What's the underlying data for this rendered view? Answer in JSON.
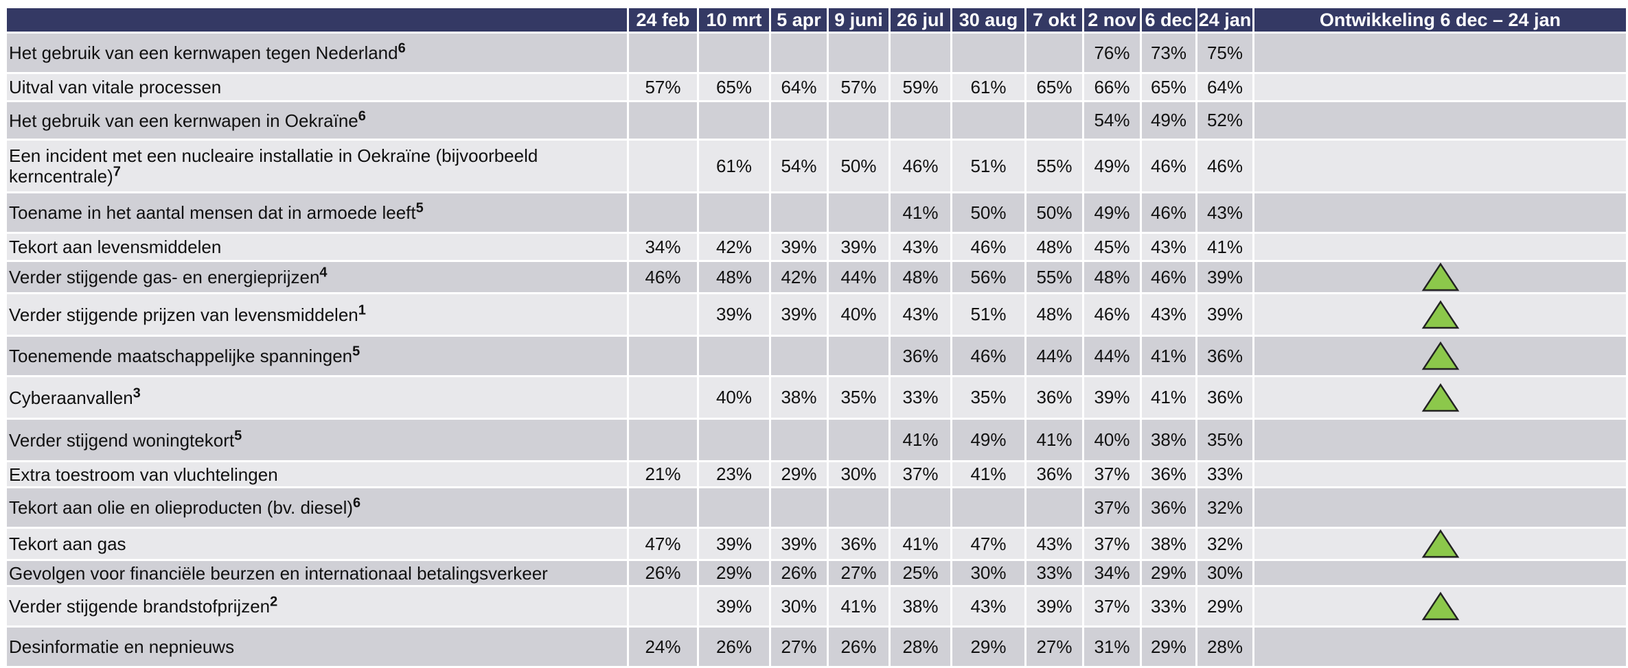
{
  "table": {
    "header": [
      "",
      "24 feb",
      "10 mrt",
      "5 apr",
      "9 juni",
      "26 jul",
      "30 aug",
      "7 okt",
      "2 nov",
      "6 dec",
      "24 jan",
      "Ontwikkeling 6 dec – 24 jan"
    ],
    "rows": [
      {
        "label": "Het gebruik van een kernwapen tegen Nederland",
        "note": "6",
        "values": [
          null,
          null,
          null,
          null,
          null,
          null,
          null,
          "76%",
          "73%",
          "75%"
        ],
        "trend": null
      },
      {
        "label": "Uitval van vitale processen",
        "note": null,
        "values": [
          "57%",
          "65%",
          "64%",
          "57%",
          "59%",
          "61%",
          "65%",
          "66%",
          "65%",
          "64%"
        ],
        "trend": null
      },
      {
        "label": "Het gebruik van een kernwapen in Oekraïne",
        "note": "6",
        "values": [
          null,
          null,
          null,
          null,
          null,
          null,
          null,
          "54%",
          "49%",
          "52%"
        ],
        "trend": null
      },
      {
        "label": "Een incident met een nucleaire installatie in Oekraïne (bijvoorbeeld kerncentrale)",
        "note": "7",
        "values": [
          null,
          "61%",
          "54%",
          "50%",
          "46%",
          "51%",
          "55%",
          "49%",
          "46%",
          "46%"
        ],
        "trend": null
      },
      {
        "label": "Toename in het aantal mensen dat in armoede leeft",
        "note": "5",
        "values": [
          null,
          null,
          null,
          null,
          "41%",
          "50%",
          "50%",
          "49%",
          "46%",
          "43%"
        ],
        "trend": null
      },
      {
        "label": "Tekort aan levensmiddelen",
        "note": null,
        "values": [
          "34%",
          "42%",
          "39%",
          "39%",
          "43%",
          "46%",
          "48%",
          "45%",
          "43%",
          "41%"
        ],
        "trend": null
      },
      {
        "label": "Verder stijgende gas- en energieprijzen",
        "note": "4",
        "values": [
          "46%",
          "48%",
          "42%",
          "44%",
          "48%",
          "56%",
          "55%",
          "48%",
          "46%",
          "39%"
        ],
        "trend": "up"
      },
      {
        "label": "Verder stijgende prijzen van levensmiddelen",
        "note": "1",
        "values": [
          null,
          "39%",
          "39%",
          "40%",
          "43%",
          "51%",
          "48%",
          "46%",
          "43%",
          "39%"
        ],
        "trend": "up"
      },
      {
        "label": "Toenemende maatschappelijke spanningen",
        "note": "5",
        "values": [
          null,
          null,
          null,
          null,
          "36%",
          "46%",
          "44%",
          "44%",
          "41%",
          "36%"
        ],
        "trend": "up"
      },
      {
        "label": "Cyberaanvallen",
        "note": "3",
        "values": [
          null,
          "40%",
          "38%",
          "35%",
          "33%",
          "35%",
          "36%",
          "39%",
          "41%",
          "36%"
        ],
        "trend": "up"
      },
      {
        "label": "Verder stijgend woningtekort",
        "note": "5",
        "values": [
          null,
          null,
          null,
          null,
          "41%",
          "49%",
          "41%",
          "40%",
          "38%",
          "35%"
        ],
        "trend": null
      },
      {
        "label": "Extra toestroom van vluchtelingen",
        "note": null,
        "values": [
          "21%",
          "23%",
          "29%",
          "30%",
          "37%",
          "41%",
          "36%",
          "37%",
          "36%",
          "33%"
        ],
        "trend": null
      },
      {
        "label": "Tekort aan olie en olieproducten (bv. diesel)",
        "note": "6",
        "values": [
          null,
          null,
          null,
          null,
          null,
          null,
          null,
          "37%",
          "36%",
          "32%"
        ],
        "trend": null
      },
      {
        "label": "Tekort aan gas",
        "note": null,
        "values": [
          "47%",
          "39%",
          "39%",
          "36%",
          "41%",
          "47%",
          "43%",
          "37%",
          "38%",
          "32%"
        ],
        "trend": "up"
      },
      {
        "label": "Gevolgen voor financiële beurzen en internationaal betalingsverkeer",
        "note": null,
        "values": [
          "26%",
          "29%",
          "26%",
          "27%",
          "25%",
          "30%",
          "33%",
          "34%",
          "29%",
          "30%"
        ],
        "trend": null
      },
      {
        "label": "Verder stijgende brandstofprijzen",
        "note": "2",
        "values": [
          null,
          "39%",
          "30%",
          "41%",
          "38%",
          "43%",
          "39%",
          "37%",
          "33%",
          "29%"
        ],
        "trend": "up"
      },
      {
        "label": "Desinformatie en nepnieuws",
        "note": null,
        "values": [
          "24%",
          "26%",
          "27%",
          "26%",
          "28%",
          "29%",
          "27%",
          "31%",
          "29%",
          "28%"
        ],
        "trend": null
      }
    ]
  }
}
